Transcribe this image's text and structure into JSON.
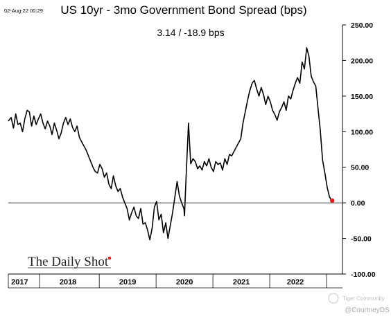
{
  "header": {
    "date_stamp": "02-Aug-22 00:29",
    "title": "US 10yr - 3mo Government Bond Spread (bps)",
    "readout": "3.14  /  -18.9 bps"
  },
  "branding": {
    "logo_text": "The Daily Shot",
    "watermark_community": "Tiger Community",
    "watermark_handle": "@CourtneyDS"
  },
  "chart_data": {
    "type": "line",
    "title": "US 10yr - 3mo Government Bond Spread (bps)",
    "xlabel": "",
    "ylabel": "",
    "ylim": [
      -100,
      250
    ],
    "y_ticks": [
      250,
      200,
      150,
      100,
      50,
      0,
      -50,
      -100
    ],
    "y_tick_labels": [
      "250.00",
      "200.00",
      "150.00",
      "100.00",
      "50.00",
      "0.00",
      "-50.00",
      "-100.00"
    ],
    "x_range": [
      2016.9,
      2022.78
    ],
    "x_tick_labels": [
      {
        "label": "2017",
        "center": 2017.1
      },
      {
        "label": "2018",
        "center": 2017.95
      },
      {
        "label": "2019",
        "center": 2019.0
      },
      {
        "label": "2020",
        "center": 2020.0
      },
      {
        "label": "2021",
        "center": 2021.0
      },
      {
        "label": "2022",
        "center": 2021.95
      }
    ],
    "x_dividers": [
      2017.45,
      2018.5,
      2019.5,
      2020.5,
      2021.5,
      2022.5
    ],
    "zero_line": 0,
    "grid": false,
    "legend": "none",
    "axis_position": "right",
    "series": [
      {
        "x": [
          2016.9,
          2016.95,
          2016.99,
          2017.03,
          2017.07,
          2017.11,
          2017.15,
          2017.19,
          2017.23,
          2017.27,
          2017.31,
          2017.35,
          2017.39,
          2017.43,
          2017.47,
          2017.51,
          2017.55,
          2017.59,
          2017.63,
          2017.67,
          2017.71,
          2017.75,
          2017.79,
          2017.83,
          2017.87,
          2017.91,
          2017.95,
          2017.99,
          2018.03,
          2018.07,
          2018.11,
          2018.15,
          2018.19,
          2018.23,
          2018.27,
          2018.31,
          2018.35,
          2018.39,
          2018.43,
          2018.47,
          2018.51,
          2018.55,
          2018.59,
          2018.63,
          2018.67,
          2018.71,
          2018.75,
          2018.79,
          2018.83,
          2018.87,
          2018.91,
          2018.95,
          2018.99,
          2019.03,
          2019.07,
          2019.11,
          2019.15,
          2019.19,
          2019.23,
          2019.27,
          2019.31,
          2019.35,
          2019.39,
          2019.43,
          2019.47,
          2019.51,
          2019.55,
          2019.59,
          2019.63,
          2019.67,
          2019.71,
          2019.75,
          2019.79,
          2019.83,
          2019.87,
          2019.91,
          2019.95,
          2019.99,
          2020.0,
          2020.03,
          2020.07,
          2020.11,
          2020.15,
          2020.19,
          2020.23,
          2020.27,
          2020.31,
          2020.35,
          2020.39,
          2020.43,
          2020.47,
          2020.51,
          2020.55,
          2020.59,
          2020.63,
          2020.67,
          2020.71,
          2020.75,
          2020.79,
          2020.83,
          2020.87,
          2020.91,
          2020.95,
          2020.99,
          2021.03,
          2021.07,
          2021.11,
          2021.15,
          2021.19,
          2021.23,
          2021.27,
          2021.31,
          2021.35,
          2021.39,
          2021.43,
          2021.47,
          2021.51,
          2021.55,
          2021.59,
          2021.63,
          2021.67,
          2021.71,
          2021.75,
          2021.79,
          2021.83,
          2021.87,
          2021.91,
          2021.95,
          2021.99,
          2022.03,
          2022.07,
          2022.11,
          2022.15,
          2022.19,
          2022.23,
          2022.27,
          2022.31,
          2022.35,
          2022.39,
          2022.43,
          2022.47,
          2022.51,
          2022.55,
          2022.58,
          2022.6
        ],
        "y": [
          115,
          120,
          105,
          125,
          110,
          112,
          100,
          118,
          130,
          128,
          108,
          122,
          110,
          118,
          125,
          112,
          104,
          115,
          108,
          96,
          112,
          102,
          90,
          98,
          112,
          120,
          110,
          118,
          106,
          100,
          108,
          92,
          86,
          80,
          74,
          66,
          58,
          50,
          44,
          42,
          54,
          48,
          36,
          42,
          26,
          20,
          38,
          24,
          16,
          20,
          8,
          0,
          -8,
          -24,
          -14,
          -6,
          -18,
          -22,
          -8,
          -30,
          -28,
          -38,
          -52,
          -36,
          -6,
          2,
          -24,
          -16,
          -42,
          -28,
          -50,
          -32,
          -14,
          8,
          30,
          10,
          0,
          -8,
          -18,
          40,
          112,
          55,
          62,
          58,
          48,
          52,
          46,
          58,
          52,
          62,
          50,
          44,
          58,
          54,
          56,
          46,
          62,
          54,
          68,
          66,
          72,
          78,
          84,
          90,
          112,
          128,
          144,
          158,
          168,
          172,
          160,
          150,
          162,
          152,
          138,
          150,
          142,
          130,
          124,
          116,
          128,
          134,
          142,
          130,
          150,
          146,
          158,
          168,
          176,
          168,
          198,
          188,
          218,
          206,
          178,
          170,
          164,
          132,
          102,
          60,
          42,
          22,
          9,
          4,
          3.14
        ]
      }
    ],
    "last_value": 3.14,
    "change": -18.9,
    "units": "bps"
  }
}
